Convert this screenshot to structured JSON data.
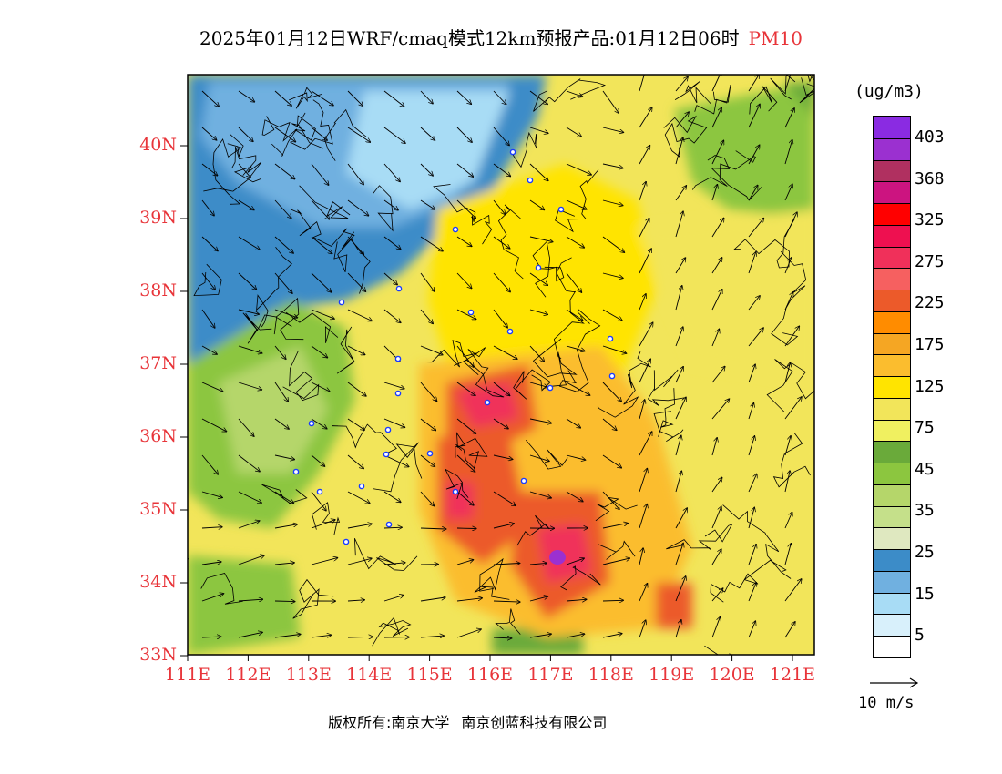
{
  "title": {
    "main": "2025年01月12日WRF/cmaq模式12km预报产品:01月12日06时",
    "species": "PM10"
  },
  "axes": {
    "lat_labels": [
      "40N",
      "39N",
      "38N",
      "37N",
      "36N",
      "35N",
      "34N",
      "33N"
    ],
    "lon_labels": [
      "111E",
      "112E",
      "113E",
      "114E",
      "115E",
      "116E",
      "117E",
      "118E",
      "119E",
      "120E",
      "121E"
    ]
  },
  "legend": {
    "units": "(ug/m3)",
    "colors": [
      "#8a2be2",
      "#9b30d0",
      "#b03060",
      "#cc1480",
      "#ff0000",
      "#ee1050",
      "#f0305a",
      "#f66060",
      "#ec5a2a",
      "#ff8c00",
      "#f5a623",
      "#fbbd2e",
      "#ffe400",
      "#f2e55a",
      "#f0f060",
      "#6aaa3a",
      "#8cc63f",
      "#b5d66a",
      "#c5e08a",
      "#dfe8c0",
      "#3c8cc8",
      "#70b0e0",
      "#a8dcf5",
      "#d8f0fb",
      "#ffffff"
    ],
    "ticks": [
      "403",
      "368",
      "325",
      "275",
      "225",
      "175",
      "125",
      "75",
      "45",
      "35",
      "25",
      "15",
      "5"
    ],
    "wind_label": "10 m/s"
  },
  "footer": {
    "copyright": "版权所有:南京大学",
    "company": "南京创蓝科技有限公司"
  }
}
